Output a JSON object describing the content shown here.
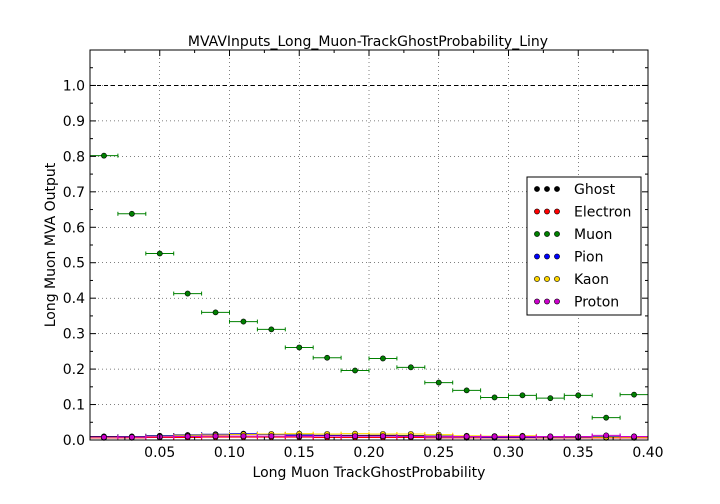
{
  "chart_data": {
    "type": "scatter",
    "title": "MVAVInputs_Long_Muon-TrackGhostProbability_Liny",
    "xlabel": "Long Muon TrackGhostProbability",
    "ylabel": "Long Muon MVA Output",
    "xlim": [
      0.0,
      0.4
    ],
    "ylim": [
      0.0,
      1.1
    ],
    "xticks": [
      "0.05",
      "0.10",
      "0.15",
      "0.20",
      "0.25",
      "0.30",
      "0.35",
      "0.40"
    ],
    "yticks": [
      "0.0",
      "0.1",
      "0.2",
      "0.3",
      "0.4",
      "0.5",
      "0.6",
      "0.7",
      "0.8",
      "0.9",
      "1.0"
    ],
    "grid": true,
    "reference_line": 1.0,
    "bin_half_width": 0.01,
    "legend_position": "right",
    "x": [
      0.01,
      0.03,
      0.05,
      0.07,
      0.09,
      0.11,
      0.13,
      0.15,
      0.17,
      0.19,
      0.21,
      0.23,
      0.25,
      0.27,
      0.29,
      0.31,
      0.33,
      0.35,
      0.37,
      0.39
    ],
    "series": [
      {
        "name": "Ghost",
        "color": "#000000",
        "values": [
          0.01,
          0.01,
          0.012,
          0.014,
          0.016,
          0.016,
          0.016,
          0.014,
          0.013,
          0.013,
          0.013,
          0.012,
          0.011,
          0.011,
          0.01,
          0.01,
          0.01,
          0.01,
          0.01,
          0.01
        ]
      },
      {
        "name": "Electron",
        "color": "#ff0000",
        "values": [
          0.006,
          0.006,
          0.007,
          0.007,
          0.008,
          0.008,
          0.008,
          0.008,
          0.007,
          0.007,
          0.007,
          0.007,
          0.006,
          0.006,
          0.006,
          0.006,
          0.006,
          0.006,
          0.006,
          0.006
        ]
      },
      {
        "name": "Muon",
        "color": "#008000",
        "values": [
          0.802,
          0.638,
          0.526,
          0.413,
          0.36,
          0.334,
          0.312,
          0.261,
          0.232,
          0.196,
          0.23,
          0.205,
          0.162,
          0.14,
          0.12,
          0.126,
          0.118,
          0.126,
          0.063,
          0.128
        ]
      },
      {
        "name": "Pion",
        "color": "#0000ff",
        "values": [
          0.008,
          0.009,
          0.011,
          0.013,
          0.016,
          0.018,
          0.016,
          0.013,
          0.012,
          0.011,
          0.011,
          0.01,
          0.009,
          0.009,
          0.008,
          0.008,
          0.008,
          0.008,
          0.01,
          0.008
        ]
      },
      {
        "name": "Kaon",
        "color": "#ffd700",
        "values": [
          0.007,
          0.008,
          0.01,
          0.012,
          0.014,
          0.016,
          0.017,
          0.018,
          0.017,
          0.018,
          0.017,
          0.017,
          0.015,
          0.012,
          0.011,
          0.012,
          0.009,
          0.009,
          0.008,
          0.008
        ]
      },
      {
        "name": "Proton",
        "color": "#cc00cc",
        "values": [
          0.008,
          0.008,
          0.009,
          0.01,
          0.011,
          0.011,
          0.011,
          0.011,
          0.011,
          0.011,
          0.011,
          0.01,
          0.01,
          0.01,
          0.01,
          0.01,
          0.01,
          0.01,
          0.013,
          0.01
        ]
      }
    ]
  }
}
